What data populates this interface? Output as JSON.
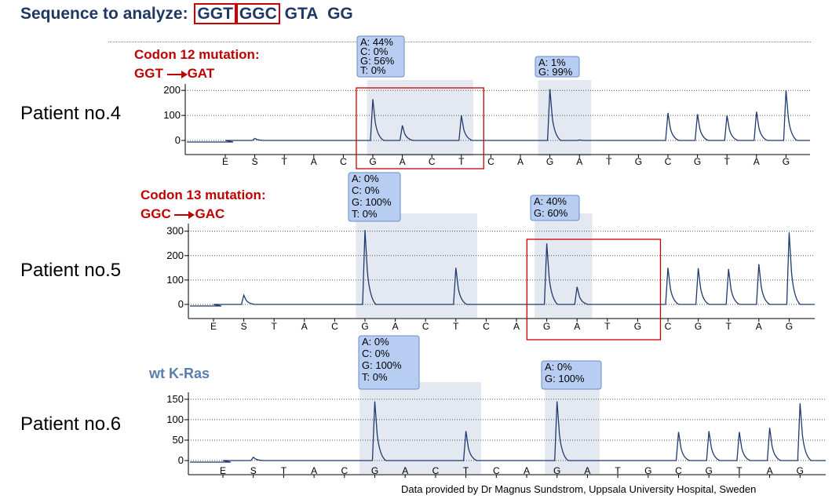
{
  "title": {
    "prefix": "Sequence to analyze:",
    "codon12": "GGT",
    "codon13": "GGC",
    "rest1": "GTA",
    "rest2": "GG"
  },
  "mutations": {
    "codon12_title": "Codon 12 mutation:",
    "codon12_from": "GGT",
    "codon12_to": "GAT",
    "codon13_title": "Codon 13 mutation:",
    "codon13_from": "GGC",
    "codon13_to": "GAC",
    "wt_label": "wt K-Ras"
  },
  "credit": "Data provided by Dr Magnus Sundstrom, Uppsala University Hospital, Sweden",
  "colors": {
    "trace": "#1f3a6e",
    "highlight": "#e4e8f0",
    "box": "#cc0000",
    "annot_bg": "#b8cdf2",
    "annot_border": "#6a8ac8"
  },
  "chart_data": [
    {
      "type": "line",
      "patient": "Patient no.4",
      "dispensation": [
        "E",
        "S",
        "T",
        "A",
        "C",
        "G",
        "A",
        "C",
        "T",
        "C",
        "A",
        "G",
        "A",
        "T",
        "G",
        "C",
        "G",
        "T",
        "A",
        "G"
      ],
      "peaks": [
        0,
        8,
        0,
        0,
        0,
        165,
        60,
        0,
        100,
        0,
        0,
        205,
        2,
        0,
        0,
        110,
        105,
        100,
        115,
        200
      ],
      "yticks": [
        0,
        100,
        200
      ],
      "ylim": [
        -10,
        220
      ],
      "annotations": [
        {
          "lines": [
            "A: 44%",
            "C: 0%",
            "G: 56%",
            "T: 0%"
          ]
        },
        {
          "lines": [
            "A: 1%",
            "G: 99%"
          ]
        }
      ]
    },
    {
      "type": "line",
      "patient": "Patient no.5",
      "dispensation": [
        "E",
        "S",
        "T",
        "A",
        "C",
        "G",
        "A",
        "C",
        "T",
        "C",
        "A",
        "G",
        "A",
        "T",
        "G",
        "C",
        "G",
        "T",
        "A",
        "G"
      ],
      "peaks": [
        0,
        38,
        0,
        0,
        0,
        305,
        0,
        0,
        150,
        0,
        0,
        250,
        72,
        0,
        0,
        150,
        148,
        145,
        165,
        295
      ],
      "yticks": [
        0,
        100,
        200,
        300
      ],
      "ylim": [
        -10,
        320
      ],
      "annotations": [
        {
          "lines": [
            "A: 0%",
            "C: 0%",
            "G: 100%",
            "T: 0%"
          ]
        },
        {
          "lines": [
            "A: 40%",
            "G: 60%"
          ]
        }
      ]
    },
    {
      "type": "line",
      "patient": "Patient no.6",
      "dispensation": [
        "E",
        "S",
        "T",
        "A",
        "C",
        "G",
        "A",
        "C",
        "T",
        "C",
        "A",
        "G",
        "A",
        "T",
        "G",
        "C",
        "G",
        "T",
        "A",
        "G"
      ],
      "peaks": [
        0,
        8,
        0,
        0,
        0,
        145,
        0,
        0,
        72,
        0,
        0,
        145,
        0,
        0,
        0,
        70,
        72,
        70,
        80,
        140
      ],
      "yticks": [
        0,
        50,
        100,
        150
      ],
      "ylim": [
        -5,
        160
      ],
      "annotations": [
        {
          "lines": [
            "A: 0%",
            "C: 0%",
            "G: 100%",
            "T: 0%"
          ]
        },
        {
          "lines": [
            "A: 0%",
            "G: 100%"
          ]
        }
      ]
    }
  ]
}
